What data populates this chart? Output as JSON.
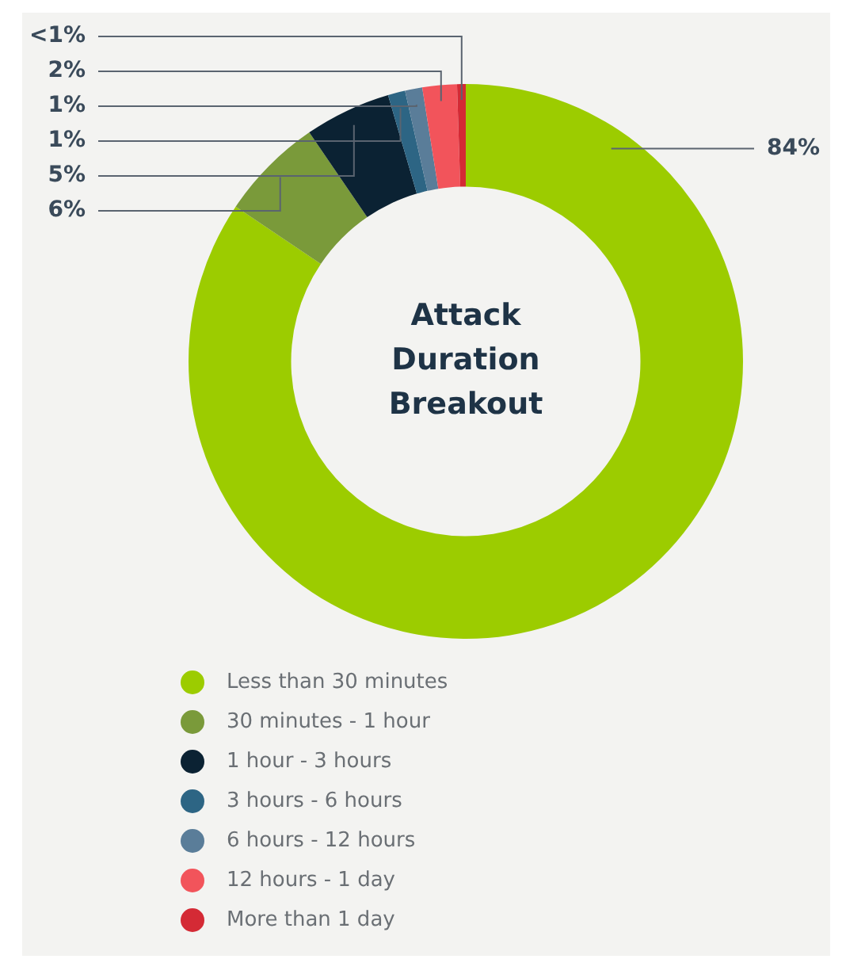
{
  "chart_data": {
    "type": "donut",
    "title": "Attack Duration Breakout",
    "categories": [
      "Less than 30 minutes",
      "30 minutes - 1 hour",
      "1 hour - 3 hours",
      "3 hours - 6 hours",
      "6 hours - 12 hours",
      "12 hours - 1 day",
      "More than 1 day"
    ],
    "values": [
      84,
      6,
      5,
      1,
      1,
      2,
      0.5
    ],
    "value_labels": [
      "84%",
      "6%",
      "5%",
      "1%",
      "1%",
      "2%",
      "<1%"
    ],
    "colors": [
      "#9ccc00",
      "#7a9a3a",
      "#0b2233",
      "#2d6584",
      "#5a7d99",
      "#f2545b",
      "#d42a35"
    ],
    "legend": "bottom"
  }
}
